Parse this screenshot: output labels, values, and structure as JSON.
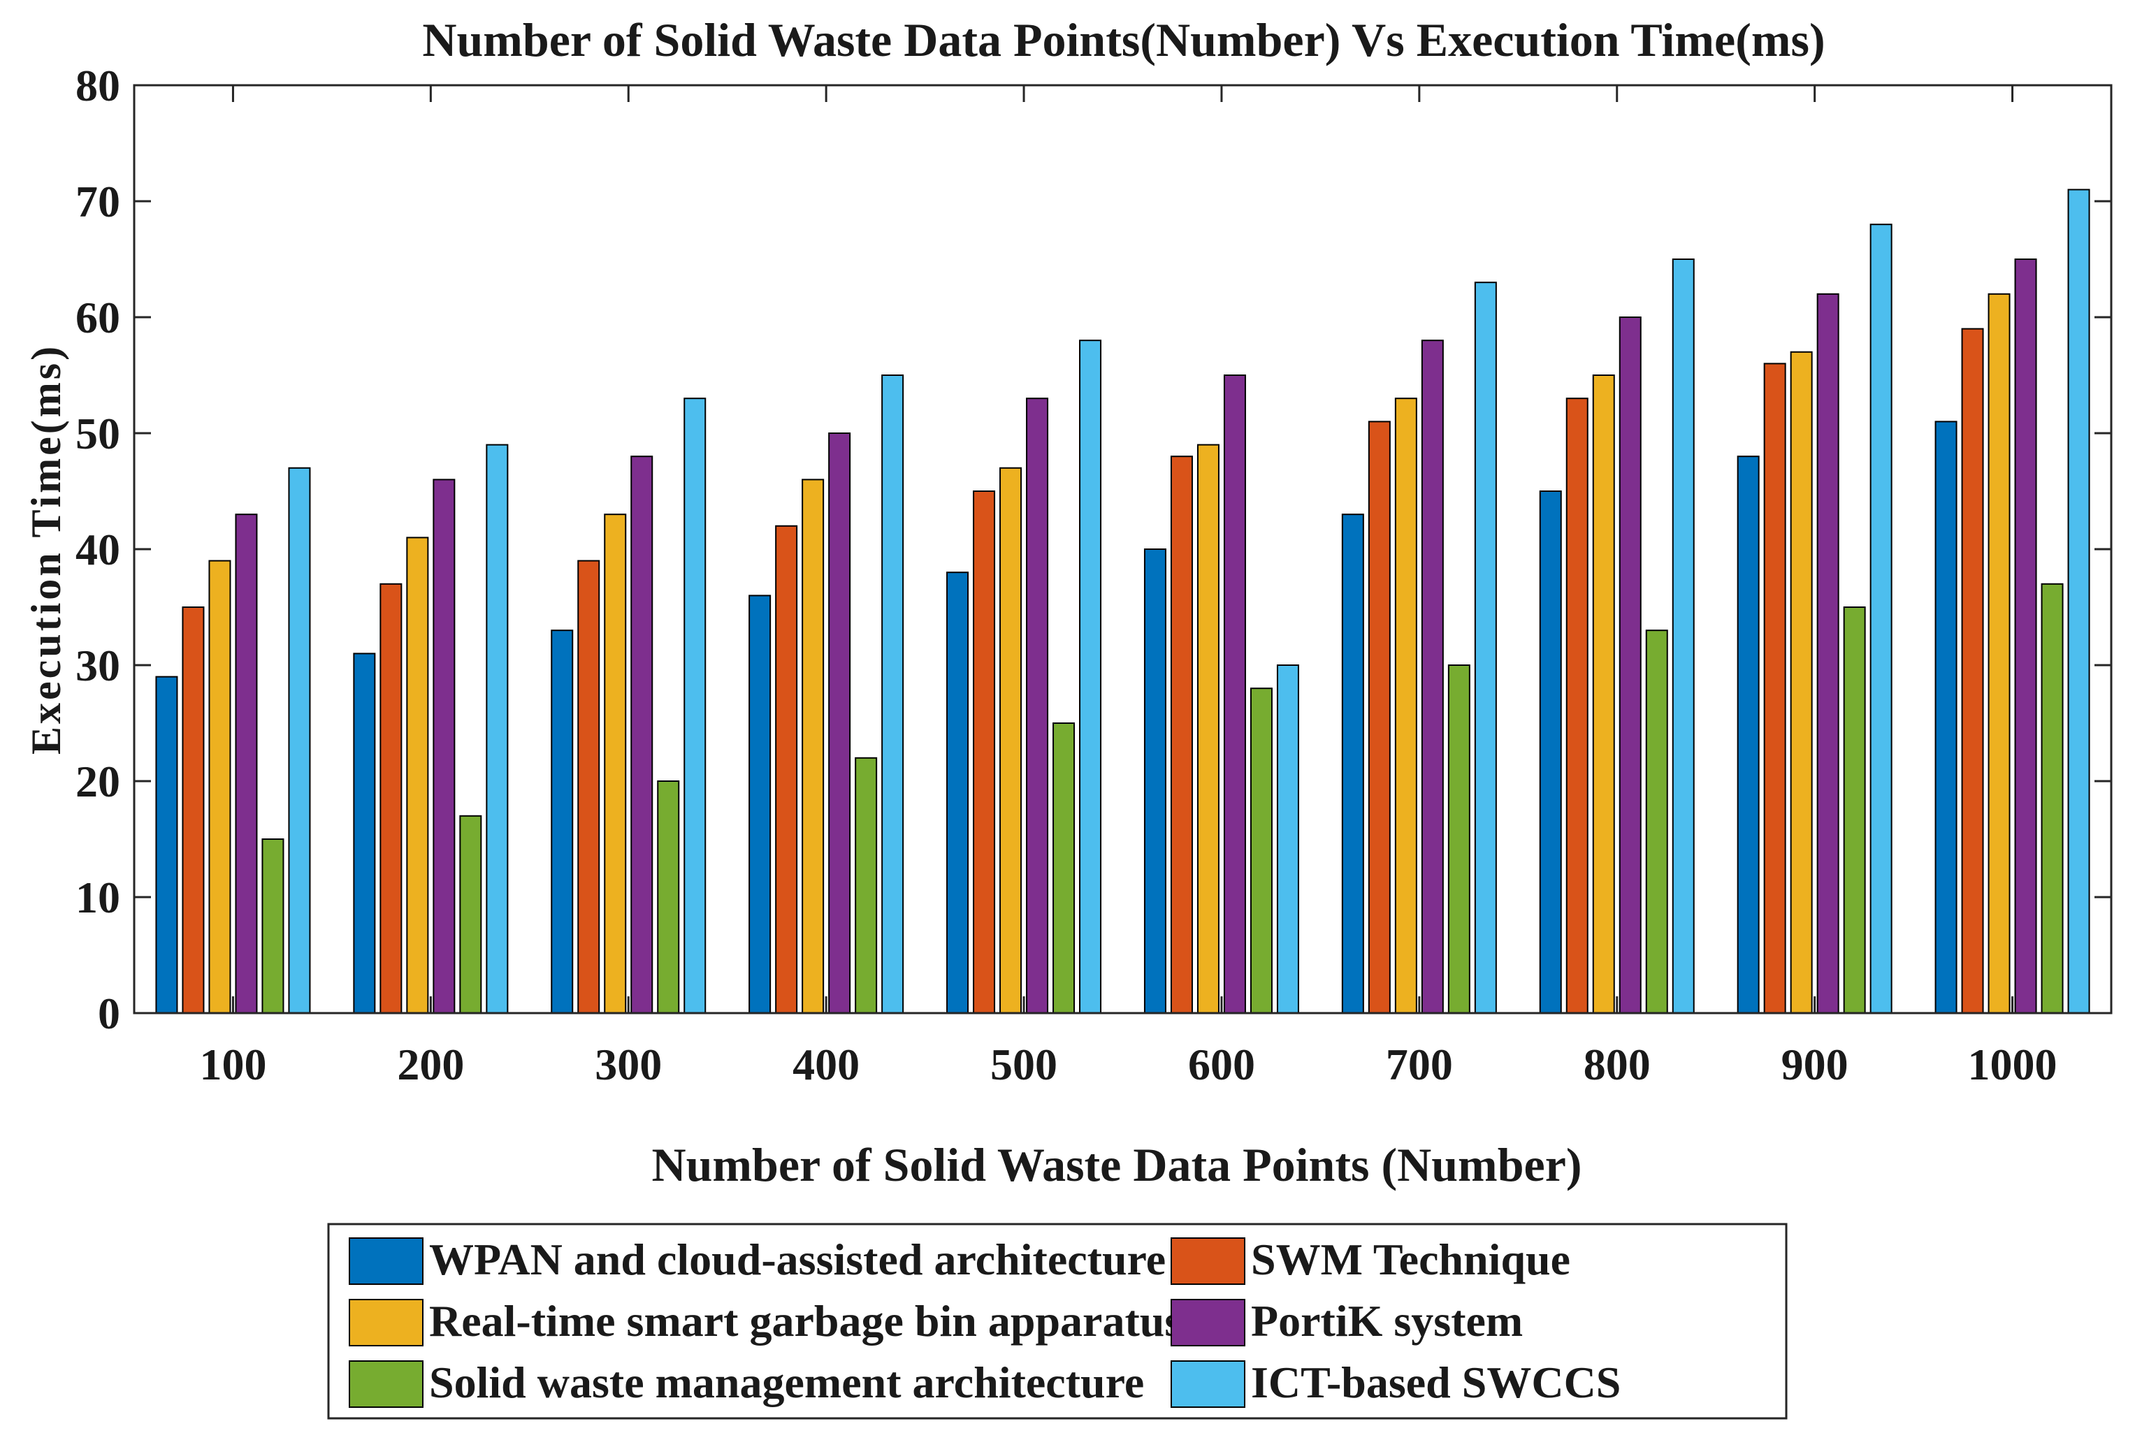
{
  "chart_data": {
    "type": "bar",
    "title": "Number of Solid Waste Data Points(Number) Vs Execution Time(ms)",
    "xlabel": "Number of Solid Waste Data Points (Number)",
    "ylabel": "Execution Time(ms)",
    "ylim": [
      0,
      80
    ],
    "yticks": [
      0,
      10,
      20,
      30,
      40,
      50,
      60,
      70,
      80
    ],
    "categories": [
      "100",
      "200",
      "300",
      "400",
      "500",
      "600",
      "700",
      "800",
      "900",
      "1000"
    ],
    "series": [
      {
        "name": "WPAN and cloud-assisted architecture",
        "color": "#0072BD",
        "values": [
          29,
          31,
          33,
          36,
          38,
          40,
          43,
          45,
          48,
          51
        ]
      },
      {
        "name": "SWM Technique",
        "color": "#D95319",
        "values": [
          35,
          37,
          39,
          42,
          45,
          48,
          51,
          53,
          56,
          59
        ]
      },
      {
        "name": "Real-time smart garbage bin apparatus",
        "color": "#EDB120",
        "values": [
          39,
          41,
          43,
          46,
          47,
          49,
          53,
          55,
          57,
          62
        ]
      },
      {
        "name": "PortiK system",
        "color": "#7E2F8E",
        "values": [
          43,
          46,
          48,
          50,
          53,
          55,
          58,
          60,
          62,
          65
        ]
      },
      {
        "name": "Solid waste management architecture",
        "color": "#77AC30",
        "values": [
          15,
          17,
          20,
          22,
          25,
          28,
          30,
          33,
          35,
          37
        ]
      },
      {
        "name": "ICT-based SWCCS",
        "color": "#4DBEEE",
        "values": [
          47,
          49,
          53,
          55,
          58,
          30,
          63,
          65,
          68,
          71
        ]
      }
    ],
    "grid": false,
    "legend_position": "bottom-center"
  }
}
